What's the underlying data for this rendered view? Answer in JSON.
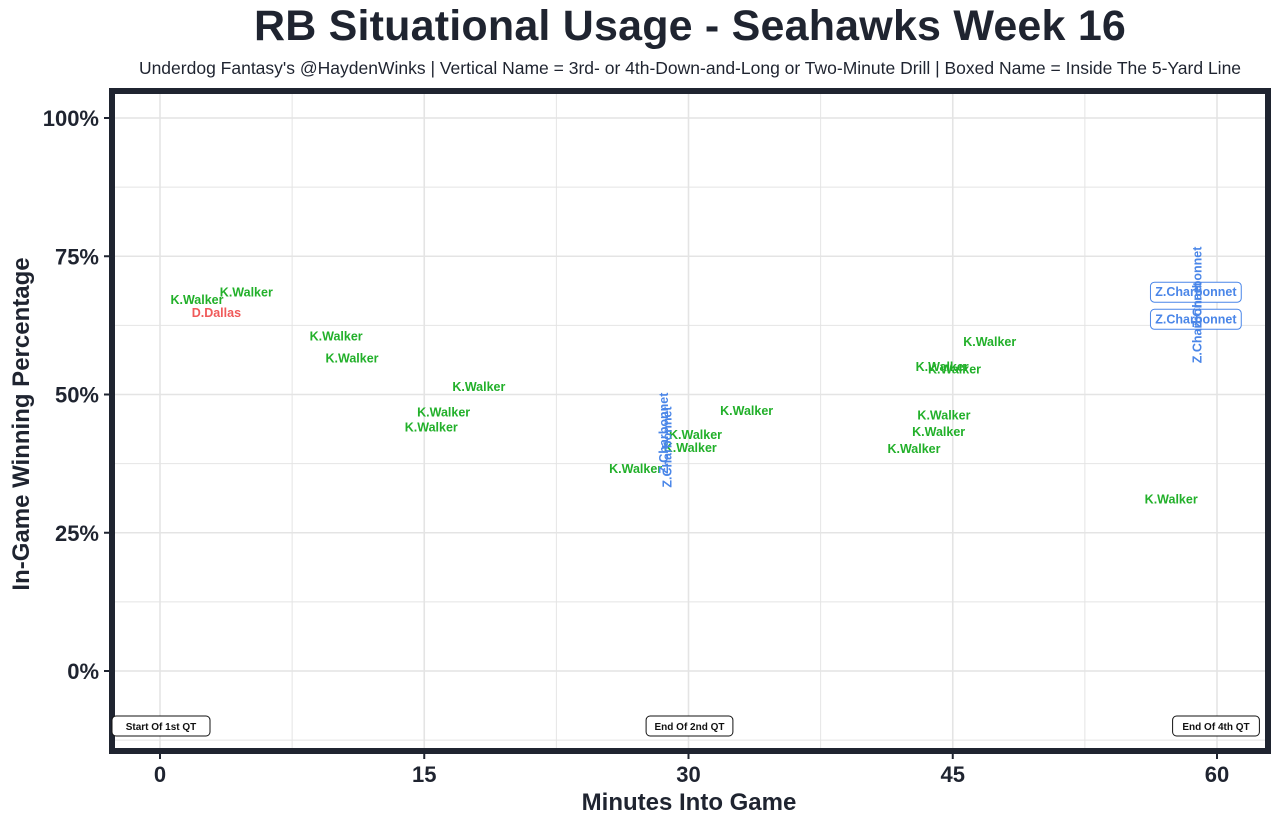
{
  "chart_data": {
    "type": "scatter",
    "title": "RB Situational Usage - Seahawks Week 16",
    "subtitle": "Underdog Fantasy's @HaydenWinks | Vertical Name = 3rd- or 4th-Down-and-Long or Two-Minute Drill | Boxed Name = Inside The 5-Yard Line",
    "xlabel": "Minutes Into Game",
    "ylabel": "In-Game Winning Percentage",
    "xlim": [
      -2.5,
      62.5
    ],
    "ylim": [
      -0.15,
      1.03
    ],
    "x_ticks": [
      0,
      15,
      30,
      45,
      60
    ],
    "x_tick_labels": [
      "0",
      "15",
      "30",
      "45",
      "60"
    ],
    "y_ticks": [
      0,
      0.25,
      0.5,
      0.75,
      1.0
    ],
    "y_tick_labels": [
      "0%",
      "25%",
      "50%",
      "75%",
      "100%"
    ],
    "grid": true,
    "colors": {
      "K.Walker": "#22b02a",
      "D.Dallas": "#f05a5a",
      "Z.Charbonnet": "#4a86e8",
      "frame": "#1f2430",
      "grid": "#e4e4e4"
    },
    "quarter_markers": [
      {
        "x": 0,
        "label": "Start Of 1st QT"
      },
      {
        "x": 30,
        "label": "End Of 2nd QT"
      },
      {
        "x": 60,
        "label": "End Of 4th QT"
      }
    ],
    "points": [
      {
        "x": 2.1,
        "y": 0.671,
        "player": "K.Walker",
        "style": "normal"
      },
      {
        "x": 4.9,
        "y": 0.684,
        "player": "K.Walker",
        "style": "normal"
      },
      {
        "x": 3.2,
        "y": 0.647,
        "player": "D.Dallas",
        "style": "normal"
      },
      {
        "x": 10.0,
        "y": 0.605,
        "player": "K.Walker",
        "style": "normal"
      },
      {
        "x": 10.9,
        "y": 0.565,
        "player": "K.Walker",
        "style": "normal"
      },
      {
        "x": 18.1,
        "y": 0.514,
        "player": "K.Walker",
        "style": "normal"
      },
      {
        "x": 16.1,
        "y": 0.467,
        "player": "K.Walker",
        "style": "normal"
      },
      {
        "x": 15.4,
        "y": 0.44,
        "player": "K.Walker",
        "style": "normal"
      },
      {
        "x": 27.0,
        "y": 0.365,
        "player": "K.Walker",
        "style": "normal"
      },
      {
        "x": 30.4,
        "y": 0.427,
        "player": "K.Walker",
        "style": "normal"
      },
      {
        "x": 30.1,
        "y": 0.403,
        "player": "K.Walker",
        "style": "normal"
      },
      {
        "x": 33.3,
        "y": 0.47,
        "player": "K.Walker",
        "style": "normal"
      },
      {
        "x": 28.6,
        "y": 0.43,
        "player": "Z.Charbonnet",
        "style": "vertical"
      },
      {
        "x": 28.8,
        "y": 0.405,
        "player": "Z.Charbonnet",
        "style": "vertical"
      },
      {
        "x": 47.1,
        "y": 0.595,
        "player": "K.Walker",
        "style": "normal"
      },
      {
        "x": 44.4,
        "y": 0.55,
        "player": "K.Walker",
        "style": "normal"
      },
      {
        "x": 45.1,
        "y": 0.545,
        "player": "K.Walker",
        "style": "normal"
      },
      {
        "x": 44.5,
        "y": 0.462,
        "player": "K.Walker",
        "style": "normal"
      },
      {
        "x": 44.2,
        "y": 0.432,
        "player": "K.Walker",
        "style": "normal"
      },
      {
        "x": 42.8,
        "y": 0.401,
        "player": "K.Walker",
        "style": "normal"
      },
      {
        "x": 57.4,
        "y": 0.31,
        "player": "K.Walker",
        "style": "normal"
      },
      {
        "x": 58.8,
        "y": 0.685,
        "player": "Z.Charbonnet",
        "style": "boxed"
      },
      {
        "x": 58.8,
        "y": 0.636,
        "player": "Z.Charbonnet",
        "style": "boxed"
      },
      {
        "x": 58.9,
        "y": 0.694,
        "player": "Z.Charbonnet",
        "style": "vertical"
      },
      {
        "x": 58.9,
        "y": 0.63,
        "player": "Z.Charbonnet",
        "style": "vertical"
      }
    ]
  }
}
